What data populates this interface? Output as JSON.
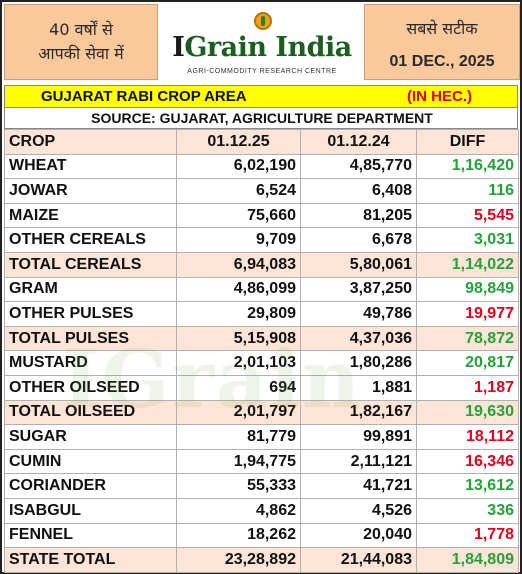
{
  "header": {
    "left_line1": "40 वर्षों से",
    "left_line2": "आपकी सेवा में",
    "logo_lead": "I",
    "logo_rest": "Grain India",
    "logo_tagline": "AGRI-COMMODITY RESEARCH CENTRE",
    "right_line1": "सबसे सटीक",
    "date": "01 DEC., 2025"
  },
  "title": "GUJARAT RABI CROP AREA",
  "unit": "(IN HEC.)",
  "source": "SOURCE: GUJARAT, AGRICULTURE DEPARTMENT",
  "columns": [
    "CROP",
    "01.12.25",
    "01.12.24",
    "DIFF"
  ],
  "rows": [
    {
      "crop": "WHEAT",
      "v1": "6,02,190",
      "v2": "4,85,770",
      "diff": "1,16,420",
      "sign": "pos",
      "total": false
    },
    {
      "crop": "JOWAR",
      "v1": "6,524",
      "v2": "6,408",
      "diff": "116",
      "sign": "pos",
      "total": false
    },
    {
      "crop": "MAIZE",
      "v1": "75,660",
      "v2": "81,205",
      "diff": "5,545",
      "sign": "neg",
      "total": false
    },
    {
      "crop": "OTHER CEREALS",
      "v1": "9,709",
      "v2": "6,678",
      "diff": "3,031",
      "sign": "pos",
      "total": false
    },
    {
      "crop": "TOTAL CEREALS",
      "v1": "6,94,083",
      "v2": "5,80,061",
      "diff": "1,14,022",
      "sign": "pos",
      "total": true
    },
    {
      "crop": "GRAM",
      "v1": "4,86,099",
      "v2": "3,87,250",
      "diff": "98,849",
      "sign": "pos",
      "total": false
    },
    {
      "crop": "OTHER PULSES",
      "v1": "29,809",
      "v2": "49,786",
      "diff": "19,977",
      "sign": "neg",
      "total": false
    },
    {
      "crop": "TOTAL PULSES",
      "v1": "5,15,908",
      "v2": "4,37,036",
      "diff": "78,872",
      "sign": "pos",
      "total": true
    },
    {
      "crop": "MUSTARD",
      "v1": "2,01,103",
      "v2": "1,80,286",
      "diff": "20,817",
      "sign": "pos",
      "total": false
    },
    {
      "crop": "OTHER OILSEED",
      "v1": "694",
      "v2": "1,881",
      "diff": "1,187",
      "sign": "neg",
      "total": false
    },
    {
      "crop": "TOTAL OILSEED",
      "v1": "2,01,797",
      "v2": "1,82,167",
      "diff": "19,630",
      "sign": "pos",
      "total": true
    },
    {
      "crop": "SUGAR",
      "v1": "81,779",
      "v2": "99,891",
      "diff": "18,112",
      "sign": "neg",
      "total": false
    },
    {
      "crop": "CUMIN",
      "v1": "1,94,775",
      "v2": "2,11,121",
      "diff": "16,346",
      "sign": "neg",
      "total": false
    },
    {
      "crop": "CORIANDER",
      "v1": "55,333",
      "v2": "41,721",
      "diff": "13,612",
      "sign": "pos",
      "total": false
    },
    {
      "crop": "ISABGUL",
      "v1": "4,862",
      "v2": "4,526",
      "diff": "336",
      "sign": "pos",
      "total": false
    },
    {
      "crop": "FENNEL",
      "v1": "18,262",
      "v2": "20,040",
      "diff": "1,778",
      "sign": "neg",
      "total": false
    },
    {
      "crop": "STATE TOTAL",
      "v1": "23,28,892",
      "v2": "21,44,083",
      "diff": "1,84,809",
      "sign": "pos",
      "total": true
    }
  ],
  "colors": {
    "header_bg": "#f9c89b",
    "title_bg": "#ffff00",
    "total_bg": "#fce4d6",
    "positive": "#27a03a",
    "negative": "#e0001b",
    "brand_green": "#1b5e20"
  },
  "icons": {
    "logo": "grain-logo-icon"
  }
}
